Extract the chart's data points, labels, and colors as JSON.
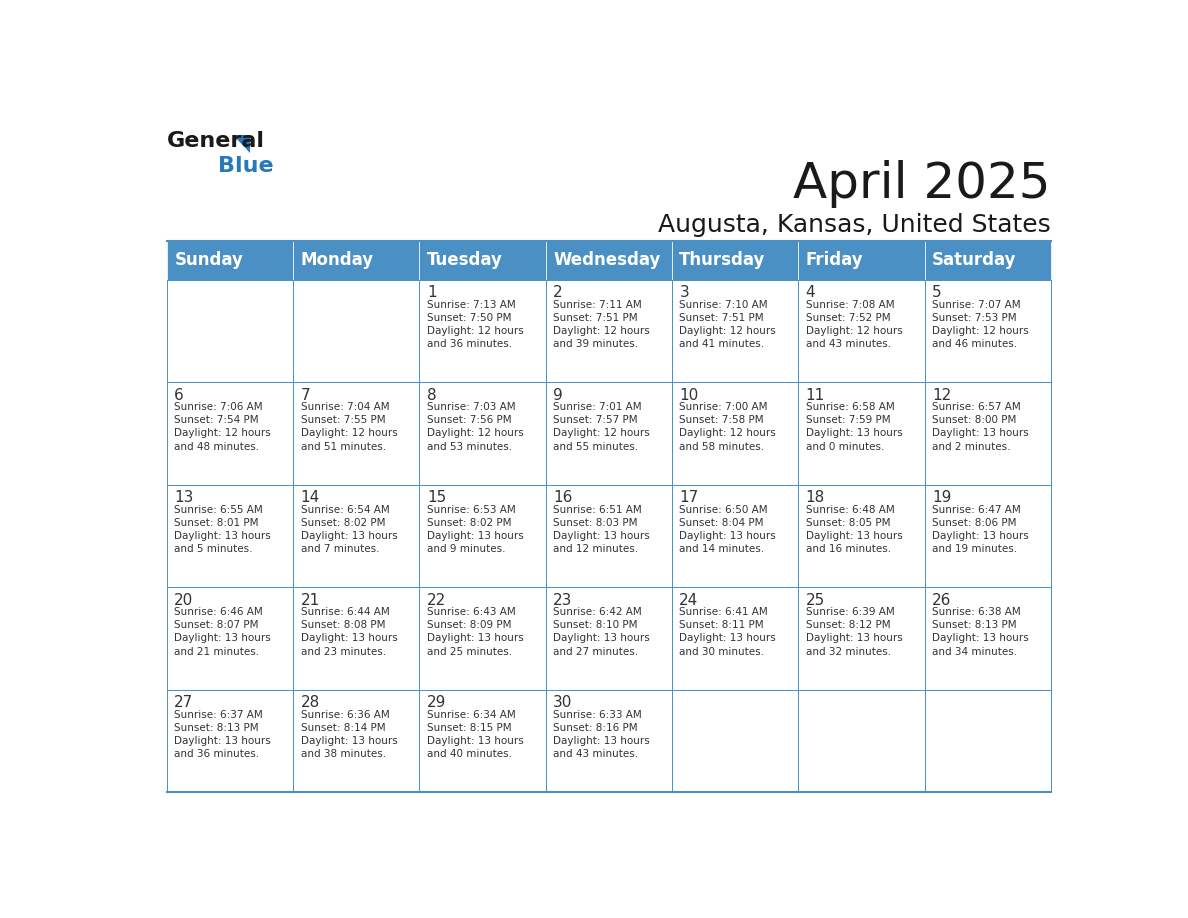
{
  "title": "April 2025",
  "subtitle": "Augusta, Kansas, United States",
  "days_of_week": [
    "Sunday",
    "Monday",
    "Tuesday",
    "Wednesday",
    "Thursday",
    "Friday",
    "Saturday"
  ],
  "header_bg": "#4A90C4",
  "header_text": "#FFFFFF",
  "cell_bg_light": "#FFFFFF",
  "border_color": "#4A90C4",
  "text_color": "#333333",
  "number_color": "#333333",
  "bg_color": "#FFFFFF",
  "weeks": [
    [
      {
        "day": "",
        "text": ""
      },
      {
        "day": "",
        "text": ""
      },
      {
        "day": "1",
        "text": "Sunrise: 7:13 AM\nSunset: 7:50 PM\nDaylight: 12 hours\nand 36 minutes."
      },
      {
        "day": "2",
        "text": "Sunrise: 7:11 AM\nSunset: 7:51 PM\nDaylight: 12 hours\nand 39 minutes."
      },
      {
        "day": "3",
        "text": "Sunrise: 7:10 AM\nSunset: 7:51 PM\nDaylight: 12 hours\nand 41 minutes."
      },
      {
        "day": "4",
        "text": "Sunrise: 7:08 AM\nSunset: 7:52 PM\nDaylight: 12 hours\nand 43 minutes."
      },
      {
        "day": "5",
        "text": "Sunrise: 7:07 AM\nSunset: 7:53 PM\nDaylight: 12 hours\nand 46 minutes."
      }
    ],
    [
      {
        "day": "6",
        "text": "Sunrise: 7:06 AM\nSunset: 7:54 PM\nDaylight: 12 hours\nand 48 minutes."
      },
      {
        "day": "7",
        "text": "Sunrise: 7:04 AM\nSunset: 7:55 PM\nDaylight: 12 hours\nand 51 minutes."
      },
      {
        "day": "8",
        "text": "Sunrise: 7:03 AM\nSunset: 7:56 PM\nDaylight: 12 hours\nand 53 minutes."
      },
      {
        "day": "9",
        "text": "Sunrise: 7:01 AM\nSunset: 7:57 PM\nDaylight: 12 hours\nand 55 minutes."
      },
      {
        "day": "10",
        "text": "Sunrise: 7:00 AM\nSunset: 7:58 PM\nDaylight: 12 hours\nand 58 minutes."
      },
      {
        "day": "11",
        "text": "Sunrise: 6:58 AM\nSunset: 7:59 PM\nDaylight: 13 hours\nand 0 minutes."
      },
      {
        "day": "12",
        "text": "Sunrise: 6:57 AM\nSunset: 8:00 PM\nDaylight: 13 hours\nand 2 minutes."
      }
    ],
    [
      {
        "day": "13",
        "text": "Sunrise: 6:55 AM\nSunset: 8:01 PM\nDaylight: 13 hours\nand 5 minutes."
      },
      {
        "day": "14",
        "text": "Sunrise: 6:54 AM\nSunset: 8:02 PM\nDaylight: 13 hours\nand 7 minutes."
      },
      {
        "day": "15",
        "text": "Sunrise: 6:53 AM\nSunset: 8:02 PM\nDaylight: 13 hours\nand 9 minutes."
      },
      {
        "day": "16",
        "text": "Sunrise: 6:51 AM\nSunset: 8:03 PM\nDaylight: 13 hours\nand 12 minutes."
      },
      {
        "day": "17",
        "text": "Sunrise: 6:50 AM\nSunset: 8:04 PM\nDaylight: 13 hours\nand 14 minutes."
      },
      {
        "day": "18",
        "text": "Sunrise: 6:48 AM\nSunset: 8:05 PM\nDaylight: 13 hours\nand 16 minutes."
      },
      {
        "day": "19",
        "text": "Sunrise: 6:47 AM\nSunset: 8:06 PM\nDaylight: 13 hours\nand 19 minutes."
      }
    ],
    [
      {
        "day": "20",
        "text": "Sunrise: 6:46 AM\nSunset: 8:07 PM\nDaylight: 13 hours\nand 21 minutes."
      },
      {
        "day": "21",
        "text": "Sunrise: 6:44 AM\nSunset: 8:08 PM\nDaylight: 13 hours\nand 23 minutes."
      },
      {
        "day": "22",
        "text": "Sunrise: 6:43 AM\nSunset: 8:09 PM\nDaylight: 13 hours\nand 25 minutes."
      },
      {
        "day": "23",
        "text": "Sunrise: 6:42 AM\nSunset: 8:10 PM\nDaylight: 13 hours\nand 27 minutes."
      },
      {
        "day": "24",
        "text": "Sunrise: 6:41 AM\nSunset: 8:11 PM\nDaylight: 13 hours\nand 30 minutes."
      },
      {
        "day": "25",
        "text": "Sunrise: 6:39 AM\nSunset: 8:12 PM\nDaylight: 13 hours\nand 32 minutes."
      },
      {
        "day": "26",
        "text": "Sunrise: 6:38 AM\nSunset: 8:13 PM\nDaylight: 13 hours\nand 34 minutes."
      }
    ],
    [
      {
        "day": "27",
        "text": "Sunrise: 6:37 AM\nSunset: 8:13 PM\nDaylight: 13 hours\nand 36 minutes."
      },
      {
        "day": "28",
        "text": "Sunrise: 6:36 AM\nSunset: 8:14 PM\nDaylight: 13 hours\nand 38 minutes."
      },
      {
        "day": "29",
        "text": "Sunrise: 6:34 AM\nSunset: 8:15 PM\nDaylight: 13 hours\nand 40 minutes."
      },
      {
        "day": "30",
        "text": "Sunrise: 6:33 AM\nSunset: 8:16 PM\nDaylight: 13 hours\nand 43 minutes."
      },
      {
        "day": "",
        "text": ""
      },
      {
        "day": "",
        "text": ""
      },
      {
        "day": "",
        "text": ""
      }
    ]
  ]
}
